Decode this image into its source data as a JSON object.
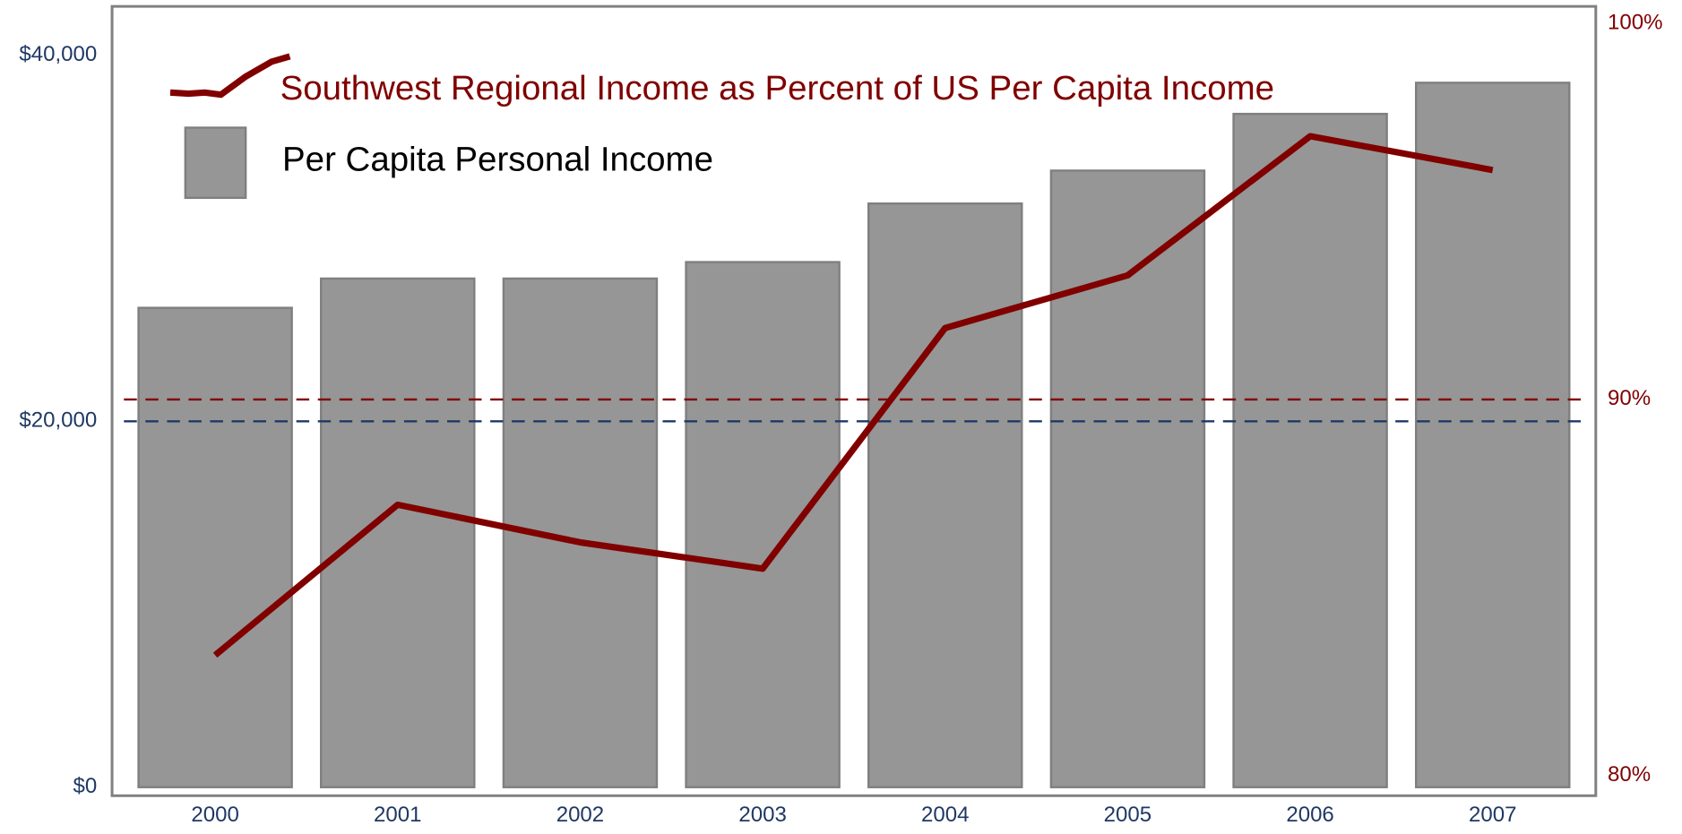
{
  "chart_data": {
    "type": "bar_line",
    "categories": [
      "2000",
      "2001",
      "2002",
      "2003",
      "2004",
      "2005",
      "2006",
      "2007"
    ],
    "series": [
      {
        "name": "Per Capita Personal Income",
        "color": "#969696",
        "type": "bar",
        "values": [
          26200,
          27800,
          27800,
          28700,
          31900,
          33700,
          36800,
          38500
        ]
      },
      {
        "name": "Southwest Regional Income as Percent of US Per Capita Income",
        "color": "#800000",
        "type": "line",
        "axis": "y2",
        "values": [
          83.2,
          87.2,
          86.2,
          85.5,
          91.9,
          93.3,
          97.0,
          96.1
        ]
      }
    ],
    "ylim": [
      0,
      40000
    ],
    "yticks": [
      {
        "value": 0,
        "label": "$0"
      },
      {
        "value": 20000,
        "label": "$20,000"
      },
      {
        "value": 40000,
        "label": "$40,000"
      }
    ],
    "y2lim": [
      80,
      100
    ],
    "y2ticks": [
      {
        "value": 80,
        "label": "80%"
      },
      {
        "value": 90,
        "label": "90%"
      },
      {
        "value": 100,
        "label": "100%"
      }
    ],
    "ytick_color": "#1f3864",
    "y2tick_color": "#800000",
    "reference_lines": true,
    "legend": "upper left"
  }
}
